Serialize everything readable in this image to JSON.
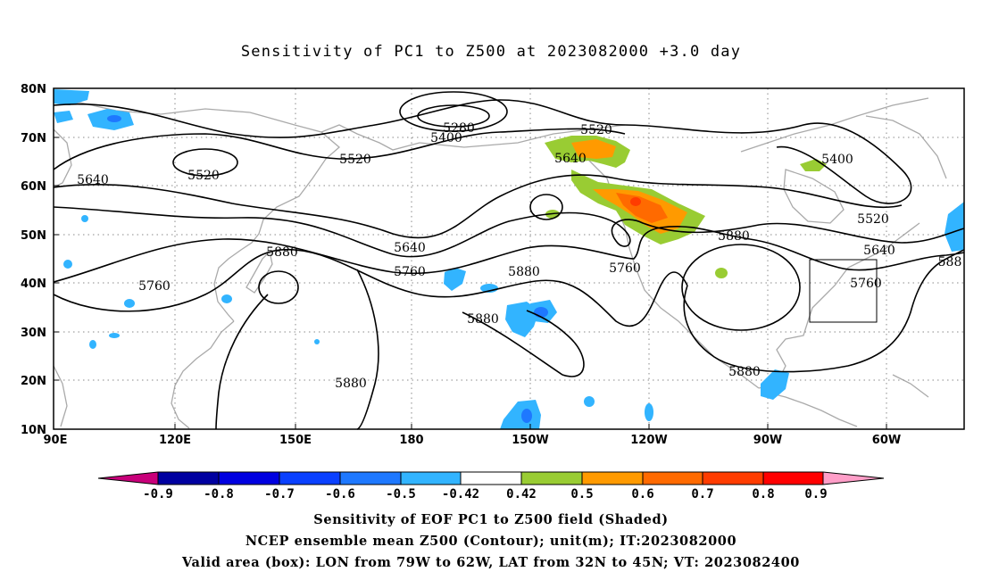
{
  "title": "Sensitivity of PC1 to Z500 at 2023082000 +3.0 day",
  "lat_labels": [
    "80N",
    "70N",
    "60N",
    "50N",
    "40N",
    "30N",
    "20N",
    "10N"
  ],
  "lon_labels": [
    "90E",
    "120E",
    "150E",
    "180",
    "150W",
    "120W",
    "90W",
    "60W"
  ],
  "contour_labels": [
    {
      "text": "5280",
      "key": "c1"
    },
    {
      "text": "5400",
      "key": "c2"
    },
    {
      "text": "5520",
      "key": "c3"
    },
    {
      "text": "5520",
      "key": "c4"
    },
    {
      "text": "5520",
      "key": "c5"
    },
    {
      "text": "5640",
      "key": "c6"
    },
    {
      "text": "5640",
      "key": "c7"
    },
    {
      "text": "5400",
      "key": "c8"
    },
    {
      "text": "5520",
      "key": "c9"
    },
    {
      "text": "5640",
      "key": "c10"
    },
    {
      "text": "5640",
      "key": "c11"
    },
    {
      "text": "5880",
      "key": "c12"
    },
    {
      "text": "5760",
      "key": "c13"
    },
    {
      "text": "5880",
      "key": "c14"
    },
    {
      "text": "5760",
      "key": "c15"
    },
    {
      "text": "5880",
      "key": "c16"
    },
    {
      "text": "5880",
      "key": "c17"
    },
    {
      "text": "5760",
      "key": "c18"
    },
    {
      "text": "5880",
      "key": "c19"
    },
    {
      "text": "5880",
      "key": "c20"
    },
    {
      "text": "5760",
      "key": "c21"
    },
    {
      "text": "588",
      "key": "c22"
    }
  ],
  "colorbar": {
    "labels": [
      "-0.9",
      "-0.8",
      "-0.7",
      "-0.6",
      "-0.5",
      "-0.42",
      "0.42",
      "0.5",
      "0.6",
      "0.7",
      "0.8",
      "0.9"
    ],
    "colors": [
      "#c8007a",
      "#0000a0",
      "#0000e0",
      "#0a40ff",
      "#1e78ff",
      "#32b4ff",
      "#00d2ff",
      "#ffffff",
      "#99cc33",
      "#ff9a00",
      "#ff6a00",
      "#ff3c00",
      "#ff0000",
      "#ff9ec8"
    ]
  },
  "footer": {
    "line1": "Sensitivity of EOF PC1 to Z500 field (Shaded)",
    "line2": "NCEP ensemble mean Z500 (Contour); unit(m); IT:2023082000",
    "line3": "Valid area (box): LON from 79W to 62W, LAT from 32N to 45N; VT: 2023082400"
  },
  "valid_box": {
    "lon_min_deg_w": 79,
    "lon_max_deg_w": 62,
    "lat_min": 32,
    "lat_max": 45
  }
}
